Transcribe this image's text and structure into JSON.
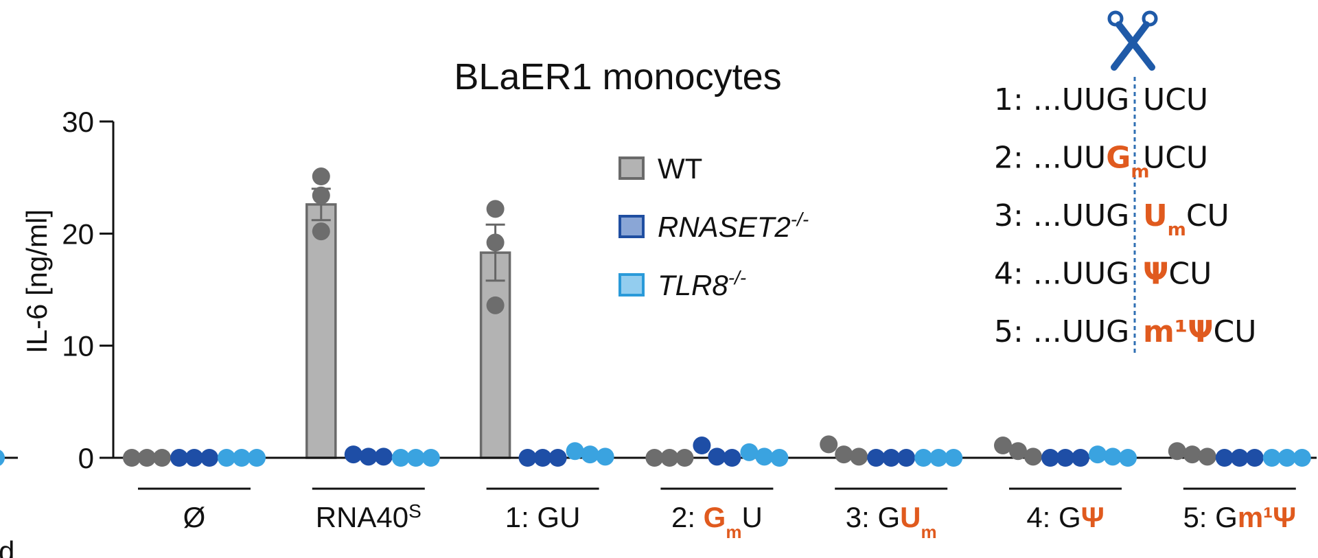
{
  "chart_data": {
    "type": "bar",
    "title": "BLaER1 monocytes",
    "ylabel": "IL-6 [ng/ml]",
    "xlabel": "",
    "ylim": [
      0,
      30
    ],
    "yticks": [
      0,
      10,
      20,
      30
    ],
    "grid": false,
    "legend_position": "top-center",
    "categories": [
      {
        "base": "Ø"
      },
      {
        "base": "RNA40",
        "sup": "S"
      },
      {
        "base": "1: GU"
      },
      {
        "base": "2: ",
        "mod": "G",
        "sub": "m",
        "tail": "U"
      },
      {
        "base": "3: G",
        "mod": "U",
        "sub": "m",
        "tail": ""
      },
      {
        "base": "4: G",
        "mod": "Ψ",
        "sub": "",
        "tail": ""
      },
      {
        "base": "5: G",
        "mod": "m¹Ψ",
        "sub": "",
        "tail": ""
      }
    ],
    "series": [
      {
        "name": "WT",
        "fill": "#b3b3b3",
        "dot": "#6d6d6d",
        "values": [
          0.0,
          22.6,
          18.3,
          0.0,
          0.5,
          0.6,
          0.3
        ],
        "errors": [
          0,
          1.4,
          2.5,
          0,
          0,
          0,
          0
        ],
        "points": [
          [
            0,
            0,
            0
          ],
          [
            25.1,
            23.4,
            20.2
          ],
          [
            22.2,
            19.2,
            13.6
          ],
          [
            0,
            0,
            0
          ],
          [
            1.2,
            0.3,
            0.1
          ],
          [
            1.1,
            0.6,
            0.1
          ],
          [
            0.6,
            0.3,
            0.1
          ]
        ]
      },
      {
        "name": "RNASET2",
        "name_sup": "-/-",
        "fill": "#8aa6d6",
        "edge": "#1f4ea1",
        "dot": "#1e4ea6",
        "values": [
          0.0,
          0.2,
          0.0,
          0.4,
          0.0,
          0.0,
          0.0
        ],
        "errors": [
          0,
          0,
          0,
          0,
          0,
          0,
          0
        ],
        "points": [
          [
            0,
            0,
            0
          ],
          [
            0.3,
            0.1,
            0.1
          ],
          [
            0,
            0,
            0
          ],
          [
            1.1,
            0.1,
            0.0
          ],
          [
            0,
            0,
            0
          ],
          [
            0,
            0,
            0
          ],
          [
            0,
            0,
            0
          ]
        ]
      },
      {
        "name": "TLR8",
        "name_sup": "-/-",
        "fill": "#93cdef",
        "edge": "#2a9ad9",
        "dot": "#3aa3e0",
        "values": [
          0.0,
          0.0,
          0.3,
          0.3,
          0.0,
          0.1,
          0.0
        ],
        "errors": [
          0,
          0,
          0,
          0,
          0,
          0,
          0
        ],
        "points": [
          [
            0,
            0,
            0
          ],
          [
            0,
            0,
            0
          ],
          [
            0.6,
            0.3,
            0.1
          ],
          [
            0.5,
            0.1,
            0.0
          ],
          [
            0,
            0,
            0
          ],
          [
            0.3,
            0.1,
            0
          ],
          [
            0,
            0,
            0
          ]
        ]
      }
    ]
  },
  "inset": {
    "scissors_color": "#1f5aa8",
    "cleavage_line_color": "#2f6fb3",
    "modification_color": "#e05a1e",
    "sequences": [
      {
        "prefix": "1: ...UUG",
        "mod": "",
        "mod_sub": "",
        "suffix": "UCU"
      },
      {
        "prefix": "2: ...UU",
        "mod": "G",
        "mod_sub": "m",
        "suffix": "UCU"
      },
      {
        "prefix": "3: ...UUG",
        "mod": "U",
        "mod_sub": "m",
        "suffix": "CU"
      },
      {
        "prefix": "4: ...UUG",
        "mod": "Ψ",
        "mod_sub": "",
        "suffix": "CU"
      },
      {
        "prefix": "5: ...UUG",
        "mod": "m¹Ψ",
        "mod_sub": "",
        "suffix": "CU"
      }
    ]
  },
  "left_edge_fragment": "d"
}
